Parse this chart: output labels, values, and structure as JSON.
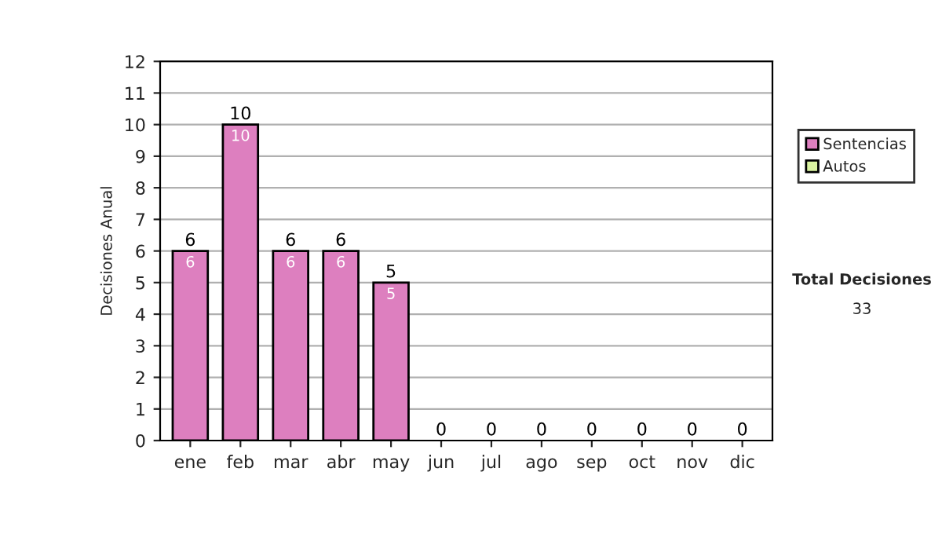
{
  "chart_data": {
    "type": "bar",
    "stacked": true,
    "ylabel": "Decisiones Anual",
    "categories": [
      "ene",
      "feb",
      "mar",
      "abr",
      "may",
      "jun",
      "jul",
      "ago",
      "sep",
      "oct",
      "nov",
      "dic"
    ],
    "series": [
      {
        "name": "Sentencias",
        "color": "#dd7fbf",
        "values": [
          6,
          10,
          6,
          6,
          5,
          0,
          0,
          0,
          0,
          0,
          0,
          0
        ],
        "value_labels": [
          "6",
          "10",
          "6",
          "6",
          "5",
          null,
          null,
          null,
          null,
          null,
          null,
          null
        ]
      },
      {
        "name": "Autos",
        "color": "#d9f2a0",
        "values": [
          0,
          0,
          0,
          0,
          0,
          0,
          0,
          0,
          0,
          0,
          0,
          0
        ]
      }
    ],
    "totals": [
      "6",
      "10",
      "6",
      "6",
      "5",
      "0",
      "0",
      "0",
      "0",
      "0",
      "0",
      "0"
    ],
    "ylim": [
      0,
      12
    ],
    "yticks": [
      0,
      1,
      2,
      3,
      4,
      5,
      6,
      7,
      8,
      9,
      10,
      11,
      12
    ],
    "grid": "y",
    "legend": "right",
    "annotations": [
      "Total Decisiones",
      "33"
    ]
  }
}
